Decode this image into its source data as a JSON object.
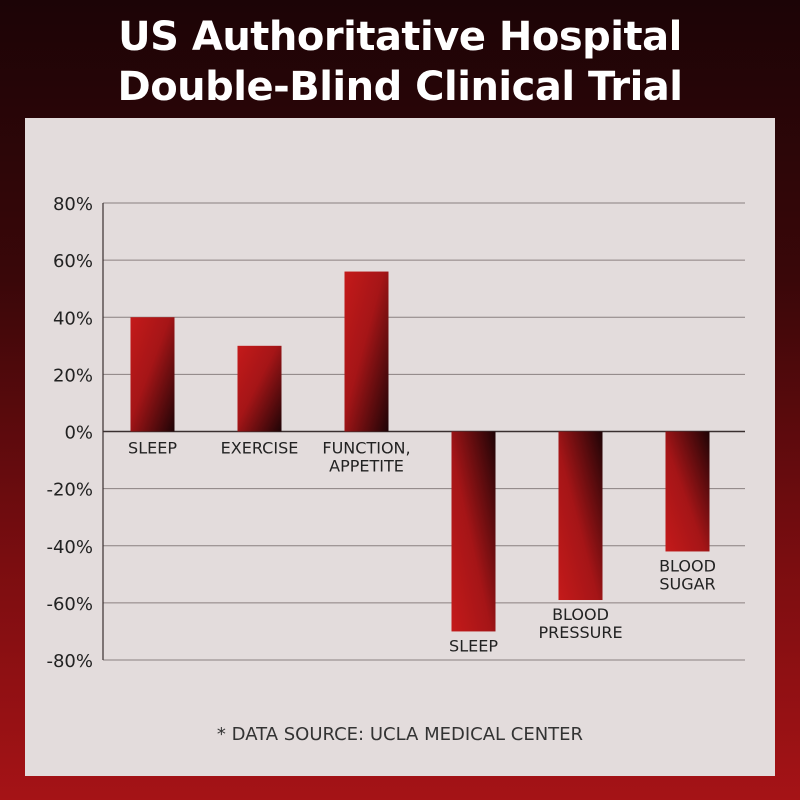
{
  "title_lines": [
    "US Authoritative Hospital",
    "Double-Blind Clinical Trial"
  ],
  "source_note": "* DATA SOURCE: UCLA MEDICAL CENTER",
  "colors": {
    "bar_bright": "#c41a1a",
    "bar_dark": "#1e0406",
    "grid": "#8a8080",
    "panel": "#e3dcdc"
  },
  "chart_data": {
    "type": "bar",
    "title": "US Authoritative Hospital Double-Blind Clinical Trial",
    "xlabel": "",
    "ylabel": "",
    "ylim": [
      -80,
      80
    ],
    "yticks": [
      80,
      60,
      40,
      20,
      0,
      -20,
      -40,
      -60,
      -80
    ],
    "ytick_labels": [
      "80%",
      "60%",
      "40%",
      "20%",
      "0%",
      "-20%",
      "-40%",
      "-60%",
      "-80%"
    ],
    "grid": true,
    "categories": [
      [
        "SLEEP"
      ],
      [
        "EXERCISE"
      ],
      [
        "FUNCTION,",
        "APPETITE"
      ],
      [
        "SLEEP"
      ],
      [
        "BLOOD",
        "PRESSURE"
      ],
      [
        "BLOOD",
        "SUGAR"
      ]
    ],
    "values": [
      40,
      30,
      56,
      -70,
      -59,
      -42
    ]
  }
}
